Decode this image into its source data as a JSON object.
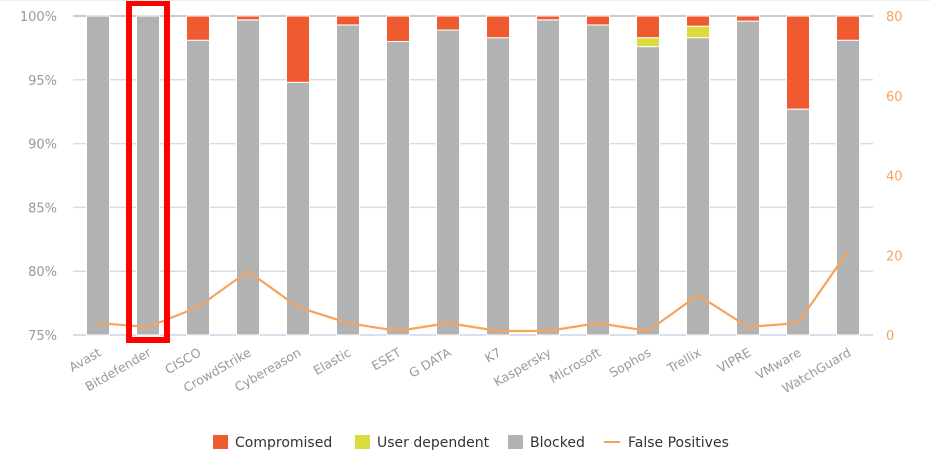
{
  "chart_data": {
    "type": "bar",
    "stacked": true,
    "categories": [
      "Avast",
      "Bitdefender",
      "CISCO",
      "CrowdStrike",
      "Cybereason",
      "Elastic",
      "ESET",
      "G DATA",
      "K7",
      "Kaspersky",
      "Microsoft",
      "Sophos",
      "Trellix",
      "VIPRE",
      "VMware",
      "WatchGuard"
    ],
    "series": [
      {
        "name": "Compromised",
        "color": "#f05a30",
        "values": [
          0,
          0,
          1.9,
          0.3,
          5.2,
          0.7,
          2.0,
          1.1,
          1.7,
          0.3,
          0.7,
          1.7,
          0.8,
          0.4,
          7.3,
          1.9
        ]
      },
      {
        "name": "User dependent",
        "color": "#d9dc3c",
        "values": [
          0,
          0,
          0,
          0,
          0,
          0,
          0,
          0,
          0,
          0,
          0,
          0.7,
          0.9,
          0,
          0,
          0
        ]
      },
      {
        "name": "Blocked",
        "color": "#b2b2b2",
        "values": [
          100,
          100,
          98.1,
          99.7,
          94.8,
          99.3,
          98.0,
          98.9,
          98.3,
          99.7,
          99.3,
          97.6,
          98.3,
          99.6,
          92.7,
          98.1
        ]
      }
    ],
    "line_series": {
      "name": "False Positives",
      "color": "#f7a35c",
      "axis": "right",
      "values": [
        3,
        2,
        7,
        16,
        7,
        3,
        1,
        3,
        1,
        1,
        3,
        1,
        10,
        2,
        3,
        21
      ]
    },
    "y_left": {
      "ylim": [
        75,
        100
      ],
      "ticks": [
        "75%",
        "80%",
        "85%",
        "90%",
        "95%",
        "100%"
      ]
    },
    "y_right": {
      "ylim": [
        0,
        80
      ],
      "ticks": [
        "0",
        "20",
        "40",
        "60",
        "80"
      ]
    },
    "grid": true,
    "legend": "bottom",
    "highlight": "Bitdefender"
  }
}
